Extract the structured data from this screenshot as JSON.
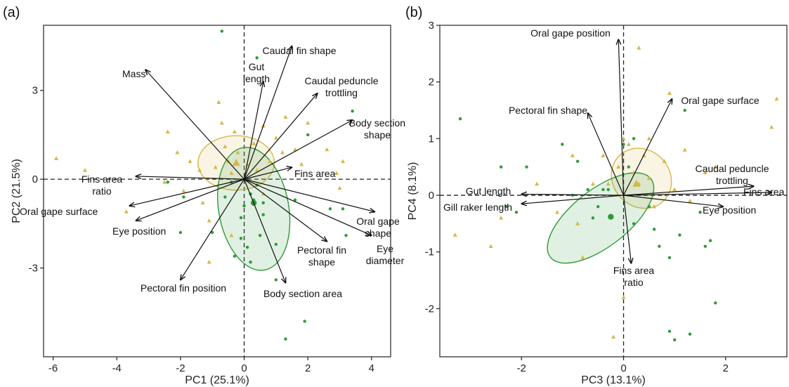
{
  "chart_data": [
    {
      "type": "scatter",
      "panel": "(a)",
      "title": "",
      "xlabel": "PC1 (25.1%)",
      "ylabel": "PC2 (21.5%)",
      "xlim": [
        -6.3,
        4.6
      ],
      "ylim": [
        -6.0,
        5.2
      ],
      "xticks": [
        -6,
        -4,
        -2,
        0,
        2,
        4
      ],
      "yticks": [
        -3,
        0,
        3
      ],
      "grid": false,
      "reference_lines": [
        0,
        0
      ],
      "groups": [
        {
          "color": "#d4b84a",
          "marker": "triangle",
          "points": [
            [
              -5.9,
              0.7
            ],
            [
              -5,
              0.3
            ],
            [
              -3.7,
              -1.1
            ],
            [
              -2.4,
              1.6
            ],
            [
              -2.1,
              0.9
            ],
            [
              -2.5,
              -0.1
            ],
            [
              -1.9,
              -0.4
            ],
            [
              -1.7,
              0.6
            ],
            [
              -1.4,
              0.3
            ],
            [
              -1.3,
              -0.8
            ],
            [
              -1.1,
              -1.4
            ],
            [
              -0.9,
              0.4
            ],
            [
              -0.8,
              2.6
            ],
            [
              -0.7,
              1.9
            ],
            [
              -0.6,
              1.1
            ],
            [
              -0.5,
              0.6
            ],
            [
              -0.4,
              0.2
            ],
            [
              -0.3,
              1.6
            ],
            [
              -0.2,
              0.9
            ],
            [
              0.1,
              0.5
            ],
            [
              0.3,
              1.2
            ],
            [
              0.4,
              0.3
            ],
            [
              0.6,
              1.8
            ],
            [
              0.8,
              0.6
            ],
            [
              1.0,
              1.4
            ],
            [
              1.2,
              0.9
            ],
            [
              1.3,
              2.1
            ],
            [
              1.6,
              1.0
            ],
            [
              1.8,
              0.5
            ],
            [
              2.0,
              1.9
            ],
            [
              2.6,
              1.0
            ],
            [
              2.9,
              0.2
            ],
            [
              3.0,
              -0.3
            ],
            [
              3.1,
              0.6
            ],
            [
              -1.1,
              -2.8
            ],
            [
              -0.4,
              -1.9
            ],
            [
              0.6,
              -0.5
            ]
          ]
        },
        {
          "color": "#2e9a3a",
          "marker": "circle",
          "points": [
            [
              -0.7,
              5.0
            ],
            [
              0.4,
              4.1
            ],
            [
              3.4,
              2.3
            ],
            [
              2.0,
              1.5
            ],
            [
              -0.4,
              -0.1
            ],
            [
              -0.6,
              -0.6
            ],
            [
              0.0,
              -0.9
            ],
            [
              0.2,
              -0.5
            ],
            [
              0.4,
              -0.2
            ],
            [
              0.6,
              -0.8
            ],
            [
              -0.1,
              -1.3
            ],
            [
              0.5,
              -1.9
            ],
            [
              0.1,
              -2.3
            ],
            [
              -1.0,
              -1.8
            ],
            [
              -1.9,
              -0.6
            ],
            [
              -2.4,
              -0.1
            ],
            [
              -2.0,
              -1.8
            ],
            [
              -0.3,
              -2.6
            ],
            [
              1.0,
              -2.2
            ],
            [
              0.2,
              -2.8
            ],
            [
              1.6,
              -0.7
            ],
            [
              2.7,
              -1.0
            ],
            [
              3.1,
              -1.0
            ],
            [
              3.2,
              -1.9
            ],
            [
              1.0,
              -3.4
            ],
            [
              1.9,
              -4.8
            ],
            [
              1.3,
              -5.4
            ],
            [
              -0.1,
              -2.0
            ],
            [
              0.6,
              -1.2
            ],
            [
              0.3,
              -0.7
            ]
          ]
        }
      ],
      "ellipses": [
        {
          "color": "#d4b84a",
          "center": [
            -0.25,
            0.55
          ],
          "semi_axes": [
            1.2,
            0.92
          ],
          "rotation_deg": 0
        },
        {
          "color": "#2e9a3a",
          "center": [
            0.3,
            -1.0
          ],
          "semi_axes": [
            1.1,
            2.1
          ],
          "rotation_deg": -10
        }
      ],
      "centroids": [
        {
          "color": "#d4b84a",
          "x": -0.25,
          "y": 0.55
        },
        {
          "color": "#2e9a3a",
          "x": 0.3,
          "y": -0.8
        }
      ],
      "loadings": [
        {
          "label": "Mass",
          "lines": [
            "Mass"
          ],
          "x": -3.1,
          "y": 3.7
        },
        {
          "label": "Gut length",
          "lines": [
            "Gut",
            "length"
          ],
          "x": 0.6,
          "y": 3.3
        },
        {
          "label": "Caudal fin shape",
          "lines": [
            "Caudal fin shape"
          ],
          "x": 1.5,
          "y": 4.5
        },
        {
          "label": "Caudal peduncle trottling",
          "lines": [
            "Caudal peduncle",
            "trottling"
          ],
          "x": 2.3,
          "y": 2.9
        },
        {
          "label": "Body section shape",
          "lines": [
            "Body section",
            "shape"
          ],
          "x": 3.4,
          "y": 2.0
        },
        {
          "label": "Fins area",
          "lines": [
            "Fins area"
          ],
          "x": 1.5,
          "y": 0.4
        },
        {
          "label": "Fins area ratio",
          "lines": [
            "Fins area",
            "ratio"
          ],
          "x": -3.4,
          "y": 0.1
        },
        {
          "label": "Oral gape surface",
          "lines": [
            "Oral gape surface"
          ],
          "x": -3.6,
          "y": -0.9
        },
        {
          "label": "Eye position",
          "lines": [
            "Eye position"
          ],
          "x": -3.4,
          "y": -1.4
        },
        {
          "label": "Oral gape shape",
          "lines": [
            "Oral gape",
            "shape"
          ],
          "x": 4.1,
          "y": -1.1
        },
        {
          "label": "Eye diameter",
          "lines": [
            "Eye",
            "diameter"
          ],
          "x": 4.0,
          "y": -1.9
        },
        {
          "label": "Pectoral fin shape",
          "lines": [
            "Pectoral fin",
            "shape"
          ],
          "x": 2.6,
          "y": -2.1
        },
        {
          "label": "Body section area",
          "lines": [
            "Body section area"
          ],
          "x": 1.3,
          "y": -3.5
        },
        {
          "label": "Pectoral fin position",
          "lines": [
            "Pectoral fin position"
          ],
          "x": -2.0,
          "y": -3.4
        }
      ]
    },
    {
      "type": "scatter",
      "panel": "(b)",
      "title": "",
      "xlabel": "PC3 (13.1%)",
      "ylabel": "PC4 (8.1%)",
      "xlim": [
        -3.6,
        3.2
      ],
      "ylim": [
        -2.85,
        3.0
      ],
      "xticks": [
        -2,
        0,
        2
      ],
      "yticks": [
        -2,
        -1,
        0,
        1,
        2,
        3
      ],
      "grid": false,
      "reference_lines": [
        0,
        0
      ],
      "groups": [
        {
          "color": "#d4b84a",
          "marker": "triangle",
          "points": [
            [
              -3.3,
              -0.7
            ],
            [
              -2.6,
              -0.9
            ],
            [
              -2.4,
              -0.4
            ],
            [
              -1.7,
              0.2
            ],
            [
              -1.3,
              -0.3
            ],
            [
              -1.0,
              0.7
            ],
            [
              -0.9,
              -0.5
            ],
            [
              -0.8,
              -1.1
            ],
            [
              -0.6,
              0.2
            ],
            [
              -0.4,
              0.7
            ],
            [
              -0.3,
              0.2
            ],
            [
              -0.1,
              0.5
            ],
            [
              0.0,
              1.0
            ],
            [
              0.0,
              -1.8
            ],
            [
              0.1,
              0.9
            ],
            [
              0.2,
              0.4
            ],
            [
              0.3,
              0.2
            ],
            [
              0.4,
              0.7
            ],
            [
              0.5,
              1.0
            ],
            [
              0.5,
              0.3
            ],
            [
              0.6,
              -0.2
            ],
            [
              0.8,
              0.6
            ],
            [
              1.0,
              0.1
            ],
            [
              1.2,
              0.8
            ],
            [
              1.3,
              -0.1
            ],
            [
              1.6,
              0.4
            ],
            [
              0.3,
              2.6
            ],
            [
              0.9,
              1.8
            ],
            [
              0.5,
              1.0
            ],
            [
              2.9,
              1.2
            ],
            [
              3.0,
              1.7
            ],
            [
              -0.2,
              -2.5
            ],
            [
              1.8,
              0.5
            ]
          ]
        },
        {
          "color": "#2e9a3a",
          "marker": "circle",
          "points": [
            [
              -3.2,
              1.35
            ],
            [
              -2.4,
              0.5
            ],
            [
              -1.9,
              0.5
            ],
            [
              -2.1,
              -0.3
            ],
            [
              -2.3,
              -0.2
            ],
            [
              -1.2,
              0.9
            ],
            [
              -0.9,
              0.6
            ],
            [
              -0.7,
              0.1
            ],
            [
              -0.4,
              0.1
            ],
            [
              -0.3,
              0.1
            ],
            [
              0.1,
              0.5
            ],
            [
              -0.5,
              -0.2
            ],
            [
              -0.6,
              -0.4
            ],
            [
              0.2,
              -0.5
            ],
            [
              0.6,
              -0.6
            ],
            [
              0.7,
              -0.9
            ],
            [
              0.9,
              -1.1
            ],
            [
              1.1,
              -0.7
            ],
            [
              1.6,
              -0.9
            ],
            [
              1.7,
              -0.8
            ],
            [
              1.8,
              -1.9
            ],
            [
              0.9,
              -2.4
            ],
            [
              1.0,
              -2.55
            ],
            [
              1.3,
              -2.45
            ],
            [
              1.2,
              1.5
            ],
            [
              1.5,
              -0.3
            ],
            [
              0.0,
              0.9
            ],
            [
              0.5,
              -0.2
            ],
            [
              -1.0,
              0.0
            ],
            [
              0.2,
              1.0
            ]
          ]
        }
      ],
      "ellipses": [
        {
          "color": "#d4b84a",
          "center": [
            0.35,
            0.3
          ],
          "semi_axes": [
            0.62,
            0.5
          ],
          "rotation_deg": 45
        },
        {
          "color": "#2e9a3a",
          "center": [
            -0.45,
            -0.4
          ],
          "semi_axes": [
            1.25,
            0.5
          ],
          "rotation_deg": -38
        }
      ],
      "centroids": [
        {
          "color": "#d4b84a",
          "x": 0.25,
          "y": 0.2
        },
        {
          "color": "#2e9a3a",
          "x": -0.25,
          "y": -0.38
        }
      ],
      "loadings": [
        {
          "label": "Oral gape position",
          "lines": [
            "Oral gape position"
          ],
          "x": -0.1,
          "y": 2.75
        },
        {
          "label": "Pectoral fin shape",
          "lines": [
            "Pectoral fin shape"
          ],
          "x": -0.7,
          "y": 1.45
        },
        {
          "label": "Oral gape surface",
          "lines": [
            "Oral gape surface"
          ],
          "x": 0.95,
          "y": 1.7
        },
        {
          "label": "Caudal peduncle trottling",
          "lines": [
            "Caudal peduncle",
            "trottling"
          ],
          "x": 2.55,
          "y": 0.16
        },
        {
          "label": "Fins area",
          "lines": [
            "Fins area"
          ],
          "x": 2.9,
          "y": 0.05
        },
        {
          "label": "Eye position",
          "lines": [
            "Eye position"
          ],
          "x": 1.95,
          "y": -0.2
        },
        {
          "label": "Gut length",
          "lines": [
            "Gut length"
          ],
          "x": -2.0,
          "y": 0.02
        },
        {
          "label": "Gill raker length",
          "lines": [
            "Gill raker length"
          ],
          "x": -2.0,
          "y": -0.15
        },
        {
          "label": "Fins area ratio",
          "lines": [
            "Fins area",
            "ratio"
          ],
          "x": 0.15,
          "y": -1.2
        }
      ]
    }
  ]
}
